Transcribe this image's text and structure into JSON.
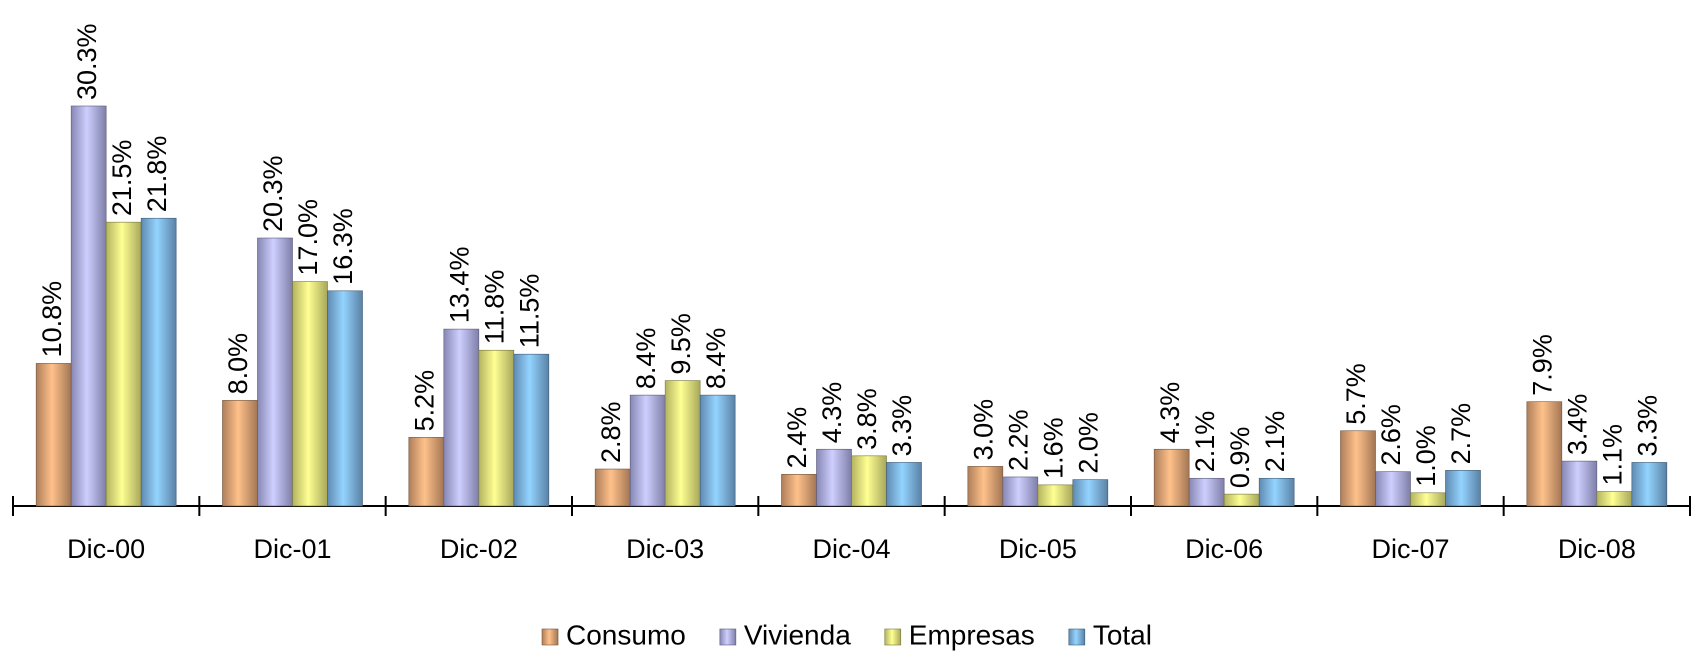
{
  "chart_data": {
    "type": "bar",
    "categories": [
      "Dic-00",
      "Dic-01",
      "Dic-02",
      "Dic-03",
      "Dic-04",
      "Dic-05",
      "Dic-06",
      "Dic-07",
      "Dic-08"
    ],
    "series": [
      {
        "name": "Consumo",
        "color": "#e8a878",
        "values": [
          10.8,
          8.0,
          5.2,
          2.8,
          2.4,
          3.0,
          4.3,
          5.7,
          7.9
        ],
        "value_labels": [
          "10.8%",
          "8.0%",
          "5.2%",
          "2.8%",
          "2.4%",
          "3.0%",
          "4.3%",
          "5.7%",
          "7.9%"
        ]
      },
      {
        "name": "Vivienda",
        "color": "#b4b4f0",
        "values": [
          30.3,
          20.3,
          13.4,
          8.4,
          4.3,
          2.2,
          2.1,
          2.6,
          3.4
        ],
        "value_labels": [
          "30.3%",
          "20.3%",
          "13.4%",
          "8.4%",
          "4.3%",
          "2.2%",
          "2.1%",
          "2.6%",
          "3.4%"
        ]
      },
      {
        "name": "Empresas",
        "color": "#eeee80",
        "values": [
          21.5,
          17.0,
          11.8,
          9.5,
          3.8,
          1.6,
          0.9,
          1.0,
          1.1
        ],
        "value_labels": [
          "21.5%",
          "17.0%",
          "11.8%",
          "9.5%",
          "3.8%",
          "1.6%",
          "0.9%",
          "1.0%",
          "1.1%"
        ]
      },
      {
        "name": "Total",
        "color": "#80b8ec",
        "values": [
          21.8,
          16.3,
          11.5,
          8.4,
          3.3,
          2.0,
          2.1,
          2.7,
          3.3
        ],
        "value_labels": [
          "21.8%",
          "16.3%",
          "11.5%",
          "8.4%",
          "3.3%",
          "2.0%",
          "2.1%",
          "2.7%",
          "3.3%"
        ]
      }
    ],
    "legend": "bottom"
  }
}
